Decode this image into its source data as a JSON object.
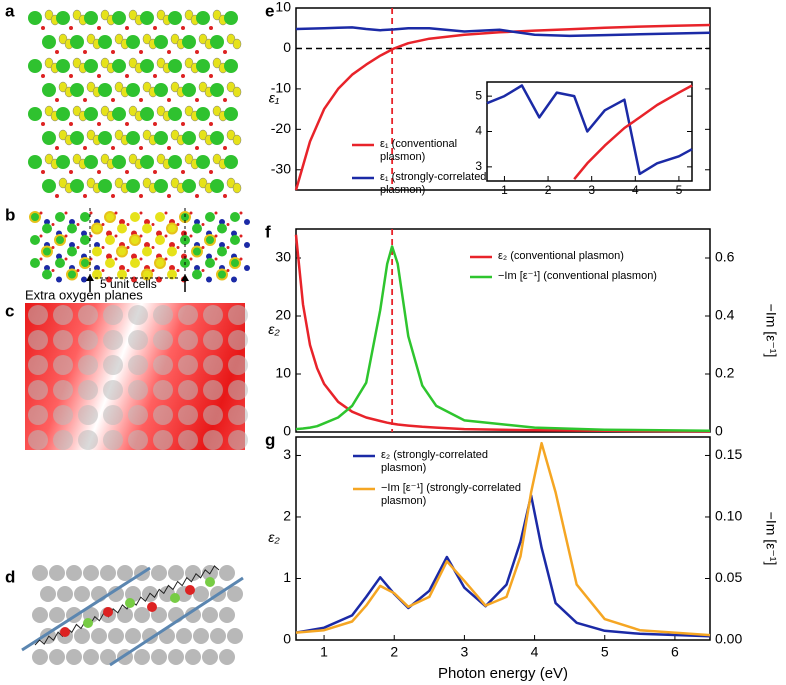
{
  "panel_labels": [
    "a",
    "b",
    "c",
    "d"
  ],
  "annotations": [
    "5 unit cells",
    "Extra oxygen planes"
  ],
  "chart_data": [
    {
      "type": "line",
      "panel_label": "e",
      "ylabel": "ε₁",
      "x": [
        0.6,
        0.8,
        1.0,
        1.2,
        1.4,
        1.6,
        1.8,
        2.0,
        2.2,
        2.5,
        3,
        3.5,
        4,
        4.5,
        5,
        5.5,
        6,
        6.5
      ],
      "xlim": [
        0.6,
        6.5
      ],
      "ylim": [
        -35,
        10
      ],
      "yticks": [
        -30,
        -20,
        -10,
        0,
        10
      ],
      "hline": 0,
      "vline": 1.97,
      "series": [
        {
          "name": "ε₁ (conventional plasmon)",
          "color": "#e8232a",
          "values": [
            -35,
            -23,
            -15,
            -10,
            -6.5,
            -4,
            -1.8,
            0,
            1.3,
            2.4,
            3.4,
            4.0,
            4.4,
            4.75,
            5.1,
            5.4,
            5.6,
            5.8
          ]
        },
        {
          "name": "ε₁ (strongly-correlated plasmon)",
          "color": "#1b2aa6",
          "values": [
            4.8,
            4.9,
            5.0,
            5.1,
            5.2,
            4.8,
            4.5,
            4.7,
            5.0,
            5.0,
            4.2,
            4.6,
            3.4,
            3.1,
            3.3,
            3.5,
            3.7,
            3.9
          ]
        }
      ]
    },
    {
      "type": "line",
      "x": [
        0.6,
        1.0,
        1.4,
        1.8,
        2.2,
        2.6,
        2.9,
        3.3,
        3.75,
        4.1,
        4.5,
        5.0,
        5.3
      ],
      "xlim": [
        0.6,
        5.3
      ],
      "ylim": [
        2.6,
        5.4
      ],
      "xticks": [
        1,
        2,
        3,
        4,
        5
      ],
      "yticks": [
        3,
        4,
        5
      ],
      "series": [
        {
          "color": "#1b2aa6",
          "values": [
            4.8,
            5.0,
            5.3,
            4.4,
            5.1,
            5.0,
            4.0,
            4.6,
            4.9,
            2.8,
            3.1,
            3.3,
            3.5
          ]
        },
        {
          "color": "#e8232a",
          "values": [
            null,
            null,
            null,
            null,
            null,
            2.65,
            3.1,
            3.6,
            4.1,
            4.4,
            4.75,
            5.1,
            5.3
          ]
        }
      ]
    },
    {
      "type": "line",
      "panel_label": "f",
      "ylabel": "ε₂",
      "y2label": "−Im [ε⁻¹]",
      "x": [
        0.6,
        0.7,
        0.8,
        0.9,
        1.0,
        1.2,
        1.4,
        1.6,
        1.8,
        1.9,
        1.97,
        2.05,
        2.2,
        2.4,
        2.6,
        3,
        4,
        5,
        6.5
      ],
      "xlim": [
        0.6,
        6.5
      ],
      "ylim": [
        0,
        35
      ],
      "yticks": [
        0,
        10,
        20,
        30
      ],
      "y2lim": [
        0,
        0.7
      ],
      "y2ticks": [
        0,
        {
          "value": 0.2,
          "label": "0.2"
        },
        {
          "value": 0.4,
          "label": "0.4"
        },
        {
          "value": 0.6,
          "label": "0.6"
        }
      ],
      "vline": 1.97,
      "series": [
        {
          "name": "ε₂ (conventional plasmon)",
          "color": "#e8232a",
          "values": [
            34,
            22,
            15,
            11,
            8.3,
            5.2,
            3.5,
            2.5,
            1.9,
            1.6,
            1.45,
            1.3,
            1.1,
            0.9,
            0.75,
            0.5,
            0.3,
            0.2,
            0.1
          ]
        },
        {
          "name": "−Im [ε⁻¹] (conventional plasmon)",
          "color": "#2ec52e",
          "axis": "y2",
          "values": [
            0.01,
            0.012,
            0.015,
            0.02,
            0.03,
            0.05,
            0.09,
            0.17,
            0.42,
            0.58,
            0.64,
            0.58,
            0.33,
            0.16,
            0.09,
            0.04,
            0.015,
            0.008,
            0.004
          ]
        }
      ]
    },
    {
      "type": "line",
      "panel_label": "g",
      "ylabel": "ε₂",
      "y2label": "−Im [ε⁻¹]",
      "xlabel": "Photon energy (eV)",
      "x": [
        0.6,
        1.0,
        1.4,
        1.6,
        1.8,
        2.0,
        2.2,
        2.5,
        2.75,
        3.0,
        3.3,
        3.6,
        3.8,
        3.95,
        4.1,
        4.3,
        4.6,
        5.0,
        5.5,
        6.5
      ],
      "xlim": [
        0.6,
        6.5
      ],
      "xticks": [
        1,
        2,
        3,
        4,
        5,
        6
      ],
      "ylim": [
        0,
        3.3
      ],
      "yticks": [
        0,
        1,
        2,
        3
      ],
      "y2lim": [
        0,
        0.165
      ],
      "y2ticks": [
        {
          "value": 0,
          "label": "0.00"
        },
        {
          "value": 0.05,
          "label": "0.05"
        },
        {
          "value": 0.1,
          "label": "0.10"
        },
        {
          "value": 0.15,
          "label": "0.15"
        }
      ],
      "series": [
        {
          "name": "ε₂ (strongly-correlated plasmon)",
          "color": "#1b2aa6",
          "values": [
            0.12,
            0.2,
            0.4,
            0.7,
            1.02,
            0.75,
            0.52,
            0.8,
            1.35,
            0.85,
            0.55,
            0.9,
            1.6,
            2.35,
            1.5,
            0.6,
            0.28,
            0.15,
            0.1,
            0.06
          ]
        },
        {
          "name": "−Im [ε⁻¹] (strongly-correlated plasmon)",
          "color": "#f5a623",
          "axis": "y2",
          "values": [
            0.006,
            0.008,
            0.015,
            0.028,
            0.044,
            0.038,
            0.027,
            0.035,
            0.064,
            0.048,
            0.028,
            0.035,
            0.068,
            0.12,
            0.16,
            0.12,
            0.045,
            0.017,
            0.008,
            0.004
          ]
        }
      ]
    }
  ]
}
